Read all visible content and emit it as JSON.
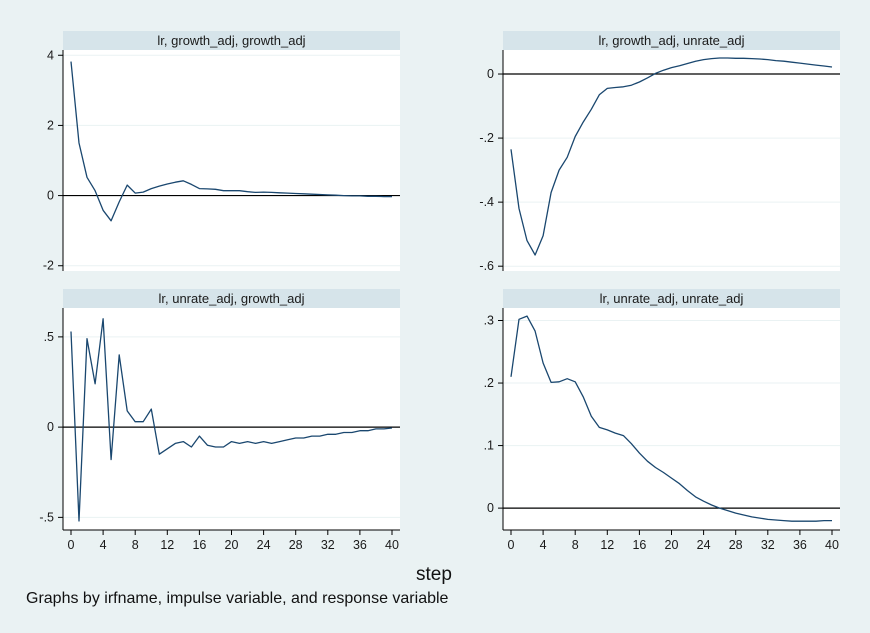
{
  "chart_data": [
    {
      "type": "line",
      "title": "lr, growth_adj, growth_adj",
      "xlim": [
        0,
        40
      ],
      "ylim": [
        -2.15,
        4.15
      ],
      "yticks": [
        -2,
        0,
        2,
        4
      ],
      "ytick_labels": [
        "-2",
        "0",
        "2",
        "4"
      ],
      "xticks": [],
      "xtick_labels": [],
      "reference_line": 0,
      "x": [
        0,
        1,
        2,
        3,
        4,
        5,
        6,
        7,
        8,
        9,
        10,
        11,
        12,
        13,
        14,
        15,
        16,
        17,
        18,
        19,
        20,
        21,
        22,
        23,
        24,
        25,
        26,
        27,
        28,
        29,
        30,
        31,
        32,
        33,
        34,
        35,
        36,
        37,
        38,
        39,
        40
      ],
      "y": [
        3.82,
        1.5,
        0.52,
        0.14,
        -0.42,
        -0.72,
        -0.18,
        0.3,
        0.07,
        0.1,
        0.2,
        0.27,
        0.33,
        0.38,
        0.42,
        0.32,
        0.2,
        0.19,
        0.18,
        0.14,
        0.14,
        0.14,
        0.11,
        0.09,
        0.1,
        0.09,
        0.08,
        0.07,
        0.06,
        0.05,
        0.04,
        0.03,
        0.02,
        0.01,
        0.0,
        -0.01,
        -0.01,
        -0.02,
        -0.02,
        -0.03,
        -0.03
      ]
    },
    {
      "type": "line",
      "title": "lr, growth_adj, unrate_adj",
      "xlim": [
        0,
        40
      ],
      "ylim": [
        -0.615,
        0.075
      ],
      "yticks": [
        -0.6,
        -0.4,
        -0.2,
        0
      ],
      "ytick_labels": [
        "-.6",
        "-.4",
        "-.2",
        "0"
      ],
      "xticks": [],
      "xtick_labels": [],
      "reference_line": 0,
      "x": [
        0,
        1,
        2,
        3,
        4,
        5,
        6,
        7,
        8,
        9,
        10,
        11,
        12,
        13,
        14,
        15,
        16,
        17,
        18,
        19,
        20,
        21,
        22,
        23,
        24,
        25,
        26,
        27,
        28,
        29,
        30,
        31,
        32,
        33,
        34,
        35,
        36,
        37,
        38,
        39,
        40
      ],
      "y": [
        -0.235,
        -0.42,
        -0.52,
        -0.565,
        -0.505,
        -0.37,
        -0.3,
        -0.26,
        -0.195,
        -0.15,
        -0.11,
        -0.065,
        -0.045,
        -0.042,
        -0.04,
        -0.035,
        -0.025,
        -0.012,
        0.002,
        0.012,
        0.02,
        0.026,
        0.033,
        0.04,
        0.045,
        0.048,
        0.05,
        0.05,
        0.049,
        0.049,
        0.048,
        0.047,
        0.045,
        0.042,
        0.04,
        0.037,
        0.034,
        0.031,
        0.028,
        0.025,
        0.022
      ]
    },
    {
      "type": "line",
      "title": "lr, unrate_adj, growth_adj",
      "xlim": [
        0,
        40
      ],
      "ylim": [
        -0.57,
        0.66
      ],
      "yticks": [
        -0.5,
        0,
        0.5
      ],
      "ytick_labels": [
        "-.5",
        "0",
        ".5"
      ],
      "xticks": [
        0,
        4,
        8,
        12,
        16,
        20,
        24,
        28,
        32,
        36,
        40
      ],
      "xtick_labels": [
        "0",
        "4",
        "8",
        "12",
        "16",
        "20",
        "24",
        "28",
        "32",
        "36",
        "40"
      ],
      "reference_line": 0,
      "x": [
        0,
        1,
        2,
        3,
        4,
        5,
        6,
        7,
        8,
        9,
        10,
        11,
        12,
        13,
        14,
        15,
        16,
        17,
        18,
        19,
        20,
        21,
        22,
        23,
        24,
        25,
        26,
        27,
        28,
        29,
        30,
        31,
        32,
        33,
        34,
        35,
        36,
        37,
        38,
        39,
        40
      ],
      "y": [
        0.53,
        -0.52,
        0.49,
        0.24,
        0.6,
        -0.18,
        0.4,
        0.09,
        0.03,
        0.03,
        0.1,
        -0.15,
        -0.12,
        -0.09,
        -0.08,
        -0.11,
        -0.05,
        -0.1,
        -0.11,
        -0.11,
        -0.08,
        -0.09,
        -0.08,
        -0.09,
        -0.08,
        -0.09,
        -0.08,
        -0.07,
        -0.06,
        -0.06,
        -0.05,
        -0.05,
        -0.04,
        -0.04,
        -0.03,
        -0.03,
        -0.02,
        -0.02,
        -0.01,
        -0.01,
        -0.005
      ]
    },
    {
      "type": "line",
      "title": "lr, unrate_adj, unrate_adj",
      "xlim": [
        0,
        40
      ],
      "ylim": [
        -0.035,
        0.32
      ],
      "yticks": [
        0,
        0.1,
        0.2,
        0.3
      ],
      "ytick_labels": [
        "0",
        ".1",
        ".2",
        ".3"
      ],
      "xticks": [
        0,
        4,
        8,
        12,
        16,
        20,
        24,
        28,
        32,
        36,
        40
      ],
      "xtick_labels": [
        "0",
        "4",
        "8",
        "12",
        "16",
        "20",
        "24",
        "28",
        "32",
        "36",
        "40"
      ],
      "reference_line": 0,
      "x": [
        0,
        1,
        2,
        3,
        4,
        5,
        6,
        7,
        8,
        9,
        10,
        11,
        12,
        13,
        14,
        15,
        16,
        17,
        18,
        19,
        20,
        21,
        22,
        23,
        24,
        25,
        26,
        27,
        28,
        29,
        30,
        31,
        32,
        33,
        34,
        35,
        36,
        37,
        38,
        39,
        40
      ],
      "y": [
        0.21,
        0.302,
        0.307,
        0.283,
        0.232,
        0.201,
        0.202,
        0.207,
        0.202,
        0.178,
        0.147,
        0.129,
        0.125,
        0.12,
        0.116,
        0.103,
        0.088,
        0.075,
        0.065,
        0.057,
        0.048,
        0.039,
        0.028,
        0.018,
        0.011,
        0.005,
        0.0,
        -0.004,
        -0.008,
        -0.011,
        -0.014,
        -0.016,
        -0.018,
        -0.019,
        -0.02,
        -0.021,
        -0.021,
        -0.021,
        -0.021,
        -0.02,
        -0.02
      ]
    }
  ],
  "xlabel": "step",
  "note": "Graphs by irfname, impulse variable, and response variable",
  "colors": {
    "background": "#eaf2f3",
    "plot_area": "#ffffff",
    "title_strip": "#d6e4ea",
    "line": "#1a476f",
    "reference_line": "#000000",
    "grid": "#eaf2f3",
    "axis": "#000000"
  }
}
